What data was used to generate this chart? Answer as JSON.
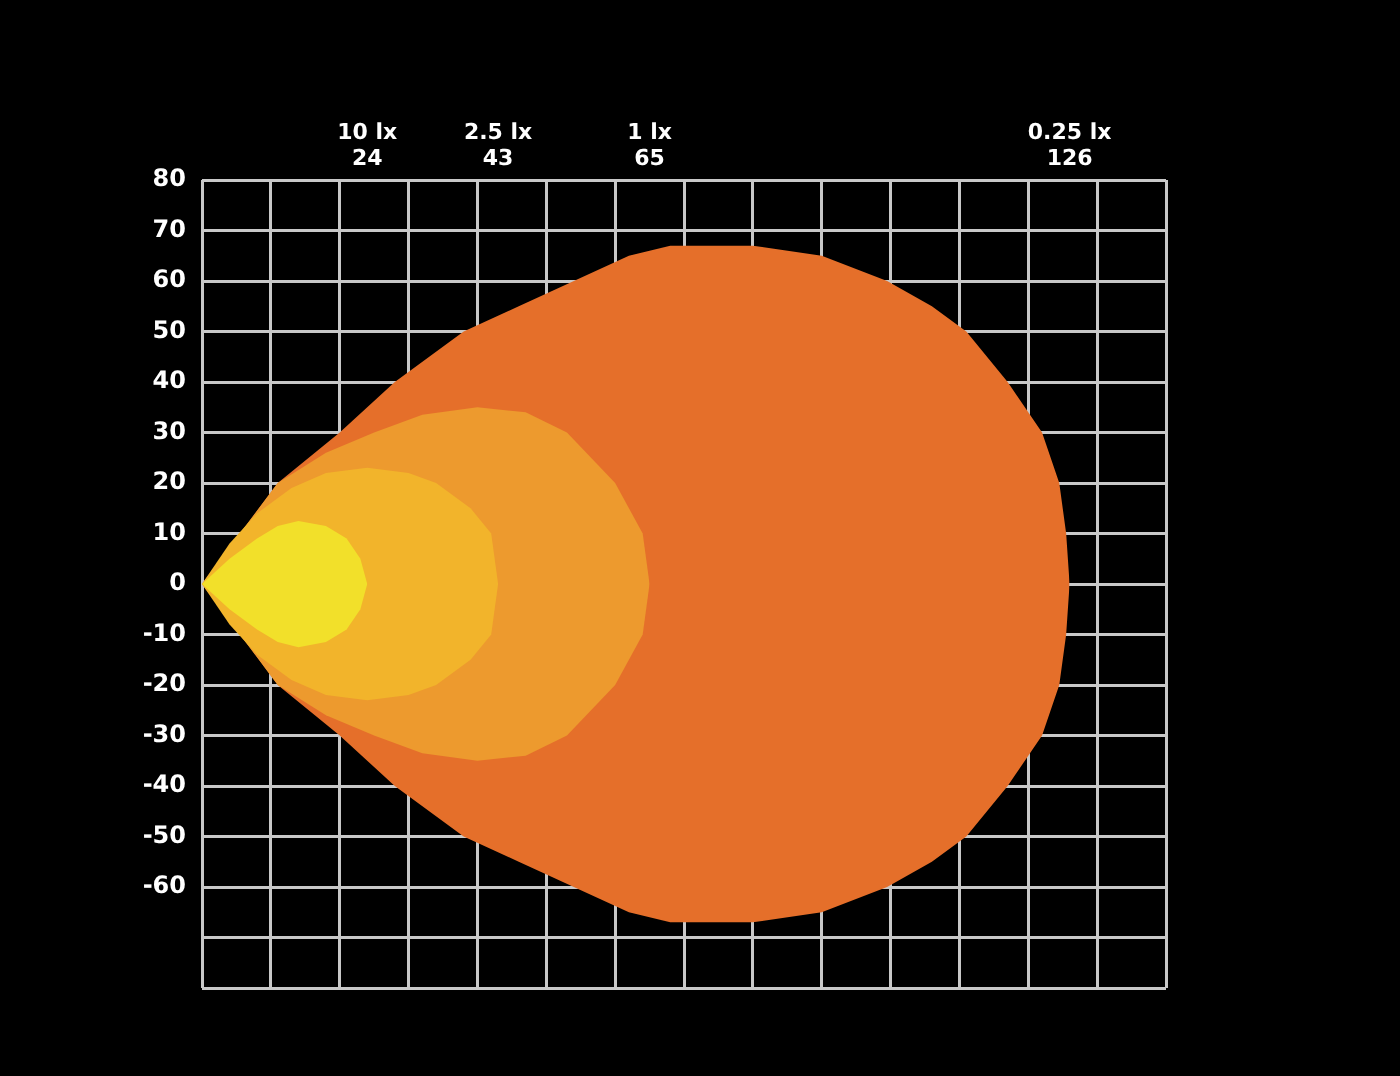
{
  "chart_data": {
    "type": "area",
    "series": [
      {
        "color": "#e56f2a",
        "x": [
          0,
          5,
          11,
          20,
          28,
          38,
          46,
          54,
          62,
          68,
          80,
          90,
          99.5,
          106,
          111,
          117,
          122,
          124.5,
          125.5,
          126
        ],
        "values": [
          0,
          9,
          20,
          30,
          40,
          50,
          55,
          60,
          65,
          67,
          67,
          65,
          60,
          55,
          50,
          40,
          30,
          20,
          10,
          0
        ]
      },
      {
        "color": "#e56f2a",
        "x": [
          0,
          5,
          11,
          20,
          28,
          38,
          46,
          54,
          62,
          68,
          80,
          90,
          99.5,
          106,
          111,
          117,
          122,
          124.5,
          125.5,
          126
        ],
        "values": [
          0,
          -9,
          -20,
          -30,
          -40,
          -50,
          -55,
          -60,
          -65,
          -67,
          -67,
          -65,
          -60,
          -55,
          -50,
          -40,
          -30,
          -20,
          -10,
          0
        ]
      },
      {
        "color": "#ed9a2e",
        "x": [
          0,
          11,
          18,
          25,
          32,
          40,
          47,
          53,
          60,
          64,
          65
        ],
        "values": [
          0,
          20,
          26,
          30,
          33.5,
          35,
          34,
          30,
          20,
          10,
          0
        ]
      },
      {
        "color": "#ed9a2e",
        "x": [
          0,
          11,
          18,
          25,
          32,
          40,
          47,
          53,
          60,
          64,
          65
        ],
        "values": [
          0,
          -20,
          -26,
          -30,
          -33.5,
          -35,
          -34,
          -30,
          -20,
          -10,
          0
        ]
      },
      {
        "color": "#f2b42b",
        "x": [
          0,
          4,
          8,
          13,
          18,
          24,
          30,
          34,
          39,
          42,
          43
        ],
        "values": [
          0,
          8,
          14,
          19,
          22,
          23,
          22,
          20,
          15,
          10,
          0
        ]
      },
      {
        "color": "#f2b42b",
        "x": [
          0,
          4,
          8,
          13,
          18,
          24,
          30,
          34,
          39,
          42,
          43
        ],
        "values": [
          0,
          -8,
          -14,
          -19,
          -22,
          -23,
          -22,
          -20,
          -15,
          -10,
          0
        ]
      },
      {
        "color": "#f2e02a",
        "x": [
          0,
          4,
          8,
          11,
          14,
          18,
          21,
          23,
          24
        ],
        "values": [
          0,
          5,
          9,
          11.5,
          12.5,
          11.5,
          9,
          5,
          0
        ]
      },
      {
        "color": "#f2e02a",
        "x": [
          0,
          4,
          8,
          11,
          14,
          18,
          21,
          23,
          24
        ],
        "values": [
          0,
          -5,
          -9,
          -11.5,
          -12.5,
          -11.5,
          -9,
          -5,
          0
        ]
      }
    ],
    "xlim": [
      0,
      140
    ],
    "xticks": [
      {
        "value": 0,
        "label": null
      },
      {
        "value": 10,
        "label": null
      },
      {
        "value": 20,
        "label": null
      },
      24,
      {
        "value": 30,
        "label": null
      },
      {
        "value": 40,
        "label": null
      },
      43,
      {
        "value": 50,
        "label": null
      },
      {
        "value": 60,
        "label": null
      },
      65,
      {
        "value": 70,
        "label": null
      },
      {
        "value": 80,
        "label": null
      },
      {
        "value": 90,
        "label": null
      },
      {
        "value": 100,
        "label": null
      },
      {
        "value": 110,
        "label": null
      },
      {
        "value": 120,
        "label": null
      },
      126,
      {
        "value": 130,
        "label": null
      },
      {
        "value": 140,
        "label": null
      }
    ],
    "annotations": [
      "10 lx",
      "2.5 lx",
      "1 lx",
      "0.25 lx"
    ],
    "ylim": [
      -80,
      80
    ],
    "yticks": [
      80,
      70,
      60,
      50,
      40,
      30,
      20,
      10,
      0,
      -10,
      -20,
      -30,
      -40,
      -50,
      -60,
      {
        "value": -70,
        "label": null
      },
      {
        "value": -80,
        "label": null
      }
    ],
    "grid": true
  }
}
